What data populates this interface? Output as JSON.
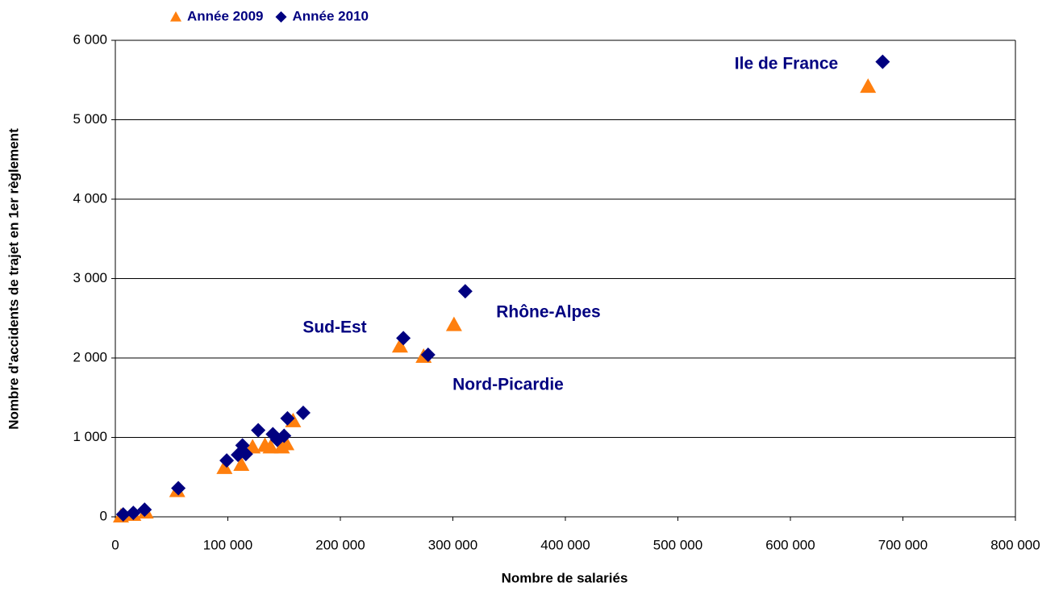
{
  "chart_data": {
    "type": "scatter",
    "xlabel": "Nombre de salariés",
    "ylabel": "Nombre d'accidents de trajet en 1er règlement",
    "xlim": [
      0,
      800000
    ],
    "xticks": [
      0,
      {
        "value": 100000,
        "label": "100 000"
      },
      {
        "value": 200000,
        "label": "200 000"
      },
      {
        "value": 300000,
        "label": "300 000"
      },
      {
        "value": 400000,
        "label": "400 000"
      },
      {
        "value": 500000,
        "label": "500 000"
      },
      {
        "value": 600000,
        "label": "600 000"
      },
      {
        "value": 700000,
        "label": "700 000"
      },
      {
        "value": 800000,
        "label": "800 000"
      }
    ],
    "ylim": [
      0,
      6000
    ],
    "yticks": [
      0,
      {
        "value": 1000,
        "label": "1 000"
      },
      {
        "value": 2000,
        "label": "2 000"
      },
      {
        "value": 3000,
        "label": "3 000"
      },
      {
        "value": 4000,
        "label": "4 000"
      },
      {
        "value": 5000,
        "label": "5 000"
      },
      {
        "value": 6000,
        "label": "6 000"
      }
    ],
    "grid": true,
    "legend": "top",
    "series": [
      {
        "name": "Année 2009",
        "color": "#ff7f0e",
        "marker": "triangle",
        "x": [
          5000,
          16000,
          27000,
          55000,
          97000,
          112000,
          122000,
          133000,
          138000,
          148000,
          152000,
          158000,
          253000,
          274000,
          301000,
          669000
        ],
        "values": [
          10,
          30,
          60,
          330,
          620,
          660,
          880,
          900,
          880,
          880,
          920,
          1210,
          2150,
          2020,
          2420,
          5420
        ]
      },
      {
        "name": "Année 2010",
        "color": "#000080",
        "marker": "diamond",
        "x": [
          7000,
          16000,
          26000,
          56000,
          99000,
          109000,
          113000,
          116000,
          127000,
          140000,
          144000,
          150000,
          153000,
          167000,
          256000,
          278000,
          311000,
          682000
        ],
        "values": [
          30,
          50,
          90,
          360,
          710,
          780,
          900,
          790,
          1090,
          1040,
          970,
          1020,
          1240,
          1310,
          2250,
          2040,
          2840,
          5730
        ]
      }
    ],
    "annotations": [
      "Ile de France",
      "Rhône-Alpes",
      "Sud-Est",
      "Nord-Picardie"
    ]
  }
}
